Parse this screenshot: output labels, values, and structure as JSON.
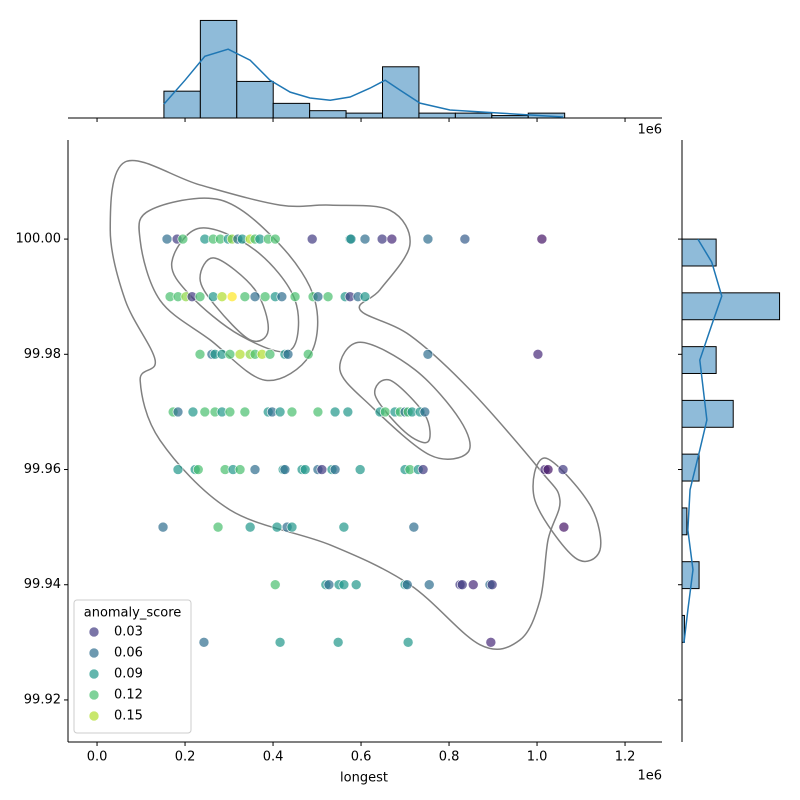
{
  "chart_data": {
    "type": "scatter",
    "x_label": "longest",
    "offset_label": "1e6",
    "xlim": [
      -66000,
      1284000
    ],
    "xticks": [
      {
        "value": 0,
        "label": "0.0"
      },
      {
        "value": 200000,
        "label": "0.2"
      },
      {
        "value": 400000,
        "label": "0.4"
      },
      {
        "value": 600000,
        "label": "0.6"
      },
      {
        "value": 800000,
        "label": "0.8"
      },
      {
        "value": 1000000,
        "label": "1.0"
      },
      {
        "value": 1200000,
        "label": "1.2"
      }
    ],
    "ylim": [
      99.9127,
      100.0172
    ],
    "yticks": [
      99.92,
      99.94,
      99.96,
      99.98,
      {
        "value": 100,
        "label": "100.00"
      }
    ],
    "x": [
      159000,
      182000,
      195000,
      245000,
      264000,
      280000,
      298000,
      307000,
      320000,
      330000,
      348000,
      359000,
      370000,
      389000,
      405000,
      489000,
      575000,
      577000,
      609000,
      648000,
      670000,
      752000,
      836000,
      1011000,
      166000,
      184000,
      202000,
      216000,
      234000,
      264000,
      284000,
      307000,
      336000,
      359000,
      382000,
      405000,
      420000,
      450000,
      491000,
      502000,
      525000,
      564000,
      575000,
      593000,
      609000,
      234000,
      261000,
      268000,
      284000,
      302000,
      325000,
      348000,
      359000,
      375000,
      393000,
      427000,
      434000,
      480000,
      752000,
      1002000,
      173000,
      184000,
      218000,
      245000,
      268000,
      284000,
      302000,
      336000,
      389000,
      398000,
      416000,
      443000,
      502000,
      541000,
      570000,
      643000,
      655000,
      677000,
      689000,
      700000,
      707000,
      716000,
      734000,
      745000,
      184000,
      223000,
      230000,
      291000,
      309000,
      325000,
      359000,
      423000,
      427000,
      466000,
      473000,
      502000,
      511000,
      534000,
      541000,
      598000,
      700000,
      711000,
      730000,
      741000,
      1018000,
      1025000,
      1059000,
      150000,
      275000,
      348000,
      409000,
      432000,
      443000,
      561000,
      720000,
      1061000,
      405000,
      520000,
      527000,
      550000,
      561000,
      589000,
      700000,
      705000,
      755000,
      825000,
      830000,
      855000,
      893000,
      898000,
      243000,
      416000,
      548000,
      707000,
      895000
    ],
    "y": [
      100,
      100,
      100,
      100,
      100,
      100,
      100,
      100,
      100,
      100,
      100,
      100,
      100,
      100,
      100,
      100,
      100,
      100,
      100,
      100,
      100,
      100,
      100,
      100,
      99.99,
      99.99,
      99.99,
      99.99,
      99.99,
      99.99,
      99.99,
      99.99,
      99.99,
      99.99,
      99.99,
      99.99,
      99.99,
      99.99,
      99.99,
      99.99,
      99.99,
      99.99,
      99.99,
      99.99,
      99.99,
      99.98,
      99.98,
      99.98,
      99.98,
      99.98,
      99.98,
      99.98,
      99.98,
      99.98,
      99.98,
      99.98,
      99.98,
      99.98,
      99.98,
      99.98,
      99.97,
      99.97,
      99.97,
      99.97,
      99.97,
      99.97,
      99.97,
      99.97,
      99.97,
      99.97,
      99.97,
      99.97,
      99.97,
      99.97,
      99.97,
      99.97,
      99.97,
      99.97,
      99.97,
      99.97,
      99.97,
      99.97,
      99.97,
      99.97,
      99.96,
      99.96,
      99.96,
      99.96,
      99.96,
      99.96,
      99.96,
      99.96,
      99.96,
      99.96,
      99.96,
      99.96,
      99.96,
      99.96,
      99.96,
      99.96,
      99.96,
      99.96,
      99.96,
      99.96,
      99.96,
      99.96,
      99.96,
      99.95,
      99.95,
      99.95,
      99.95,
      99.95,
      99.95,
      99.95,
      99.95,
      99.95,
      99.94,
      99.94,
      99.94,
      99.94,
      99.94,
      99.94,
      99.94,
      99.94,
      99.94,
      99.94,
      99.94,
      99.94,
      99.94,
      99.94,
      99.93,
      99.93,
      99.93,
      99.93,
      99.93
    ],
    "hue": [
      0.06,
      0.03,
      0.12,
      0.09,
      0.12,
      0.12,
      0.09,
      0.14,
      0.06,
      0.09,
      0.15,
      0.12,
      0.09,
      0.12,
      0.12,
      0.03,
      0.09,
      0.08,
      0.06,
      0.03,
      0.02,
      0.06,
      0.05,
      0.01,
      0.12,
      0.12,
      0.14,
      0.03,
      0.12,
      0.09,
      0.15,
      0.17,
      0.12,
      0.06,
      0.12,
      0.09,
      0.06,
      0.12,
      0.12,
      0.06,
      0.12,
      0.09,
      0.03,
      0.06,
      0.09,
      0.12,
      0.06,
      0.09,
      0.09,
      0.12,
      0.15,
      0.14,
      0.12,
      0.15,
      0.12,
      0.09,
      0.06,
      0.12,
      0.06,
      0.02,
      0.12,
      0.06,
      0.09,
      0.12,
      0.12,
      0.09,
      0.12,
      0.12,
      0.09,
      0.06,
      0.09,
      0.12,
      0.12,
      0.09,
      0.09,
      0.09,
      0.12,
      0.09,
      0.12,
      0.06,
      0.12,
      0.09,
      0.09,
      0.06,
      0.09,
      0.09,
      0.12,
      0.12,
      0.09,
      0.12,
      0.06,
      0.09,
      0.06,
      0.09,
      0.09,
      0.06,
      0.03,
      0.09,
      0.06,
      0.09,
      0.09,
      0.12,
      0.09,
      0.03,
      0.02,
      0.01,
      0.03,
      0.06,
      0.12,
      0.09,
      0.09,
      0.06,
      0.09,
      0.09,
      0.06,
      0.01,
      0.12,
      0.09,
      0.06,
      0.09,
      0.09,
      0.09,
      0.09,
      0.06,
      0.06,
      0.03,
      0.03,
      0.02,
      0.06,
      0.03,
      0.06,
      0.09,
      0.09,
      0.09,
      0.02
    ],
    "hue_name": "anomaly_score",
    "hue_range": [
      0,
      0.17
    ],
    "colormap": [
      "#440154",
      "#482878",
      "#3e4989",
      "#31688e",
      "#26828e",
      "#1f9e89",
      "#35b779",
      "#6ece58",
      "#b5de2b",
      "#fde725"
    ],
    "legend": {
      "loc": "lower left",
      "entries": [
        0.03,
        0.06,
        0.09,
        0.12,
        0.15
      ]
    },
    "contour_color": "#808080",
    "contours": [
      {
        "x": [
          64000,
          234000,
          416000,
          530000,
          666000,
          711000,
          643000,
          598000,
          711000,
          848000,
          1007000,
          1052000,
          1025000,
          1007000,
          961000,
          870000,
          711000,
          530000,
          302000,
          143000,
          98000,
          132000,
          64000,
          30000
        ],
        "y": [
          100.0134,
          100.0094,
          100.0059,
          100.0059,
          100.005,
          99.999,
          99.9912,
          99.9877,
          99.9833,
          99.9738,
          99.9599,
          99.9547,
          99.9478,
          99.9374,
          99.9304,
          99.9296,
          99.94,
          99.9469,
          99.953,
          99.9651,
          99.9755,
          99.979,
          99.9894,
          100.0016
        ]
      },
      {
        "x": [
          120000,
          280000,
          416000,
          495000,
          484000,
          382000,
          257000,
          143000,
          98000
        ],
        "y": [
          100.005,
          100.0068,
          99.999,
          99.9894,
          99.9799,
          99.9755,
          99.9825,
          99.9894,
          99.9998
        ]
      },
      {
        "x": [
          234000,
          359000,
          450000,
          439000,
          325000,
          211000,
          170000
        ],
        "y": [
          100.0019,
          99.9981,
          99.9894,
          99.9807,
          99.9833,
          99.9903,
          99.996
        ]
      },
      {
        "x": [
          268000,
          359000,
          389000,
          348000,
          268000,
          234000
        ],
        "y": [
          99.9967,
          99.9912,
          99.9842,
          99.9825,
          99.9885,
          99.9932
        ]
      },
      {
        "x": [
          598000,
          723000,
          825000,
          843000,
          757000,
          620000,
          552000
        ],
        "y": [
          99.9821,
          99.9773,
          99.9686,
          99.963,
          99.9625,
          99.9712,
          99.9773
        ]
      },
      {
        "x": [
          666000,
          745000,
          752000,
          700000,
          632000
        ],
        "y": [
          99.9755,
          99.9695,
          99.9648,
          99.9665,
          99.9729
        ]
      },
      {
        "x": [
          1018000,
          1120000,
          1143000,
          1086000,
          995000
        ],
        "y": [
          99.962,
          99.9539,
          99.946,
          99.9447,
          99.9547
        ]
      }
    ],
    "hist_color": "#8fbbd9",
    "kde_color": "#1f77b4",
    "marginal_x": {
      "type": "histogram",
      "bins": [
        152000,
        234800,
        317600,
        400400,
        483200,
        566000,
        648800,
        731600,
        814400,
        897200,
        980000,
        1062800
      ],
      "counts": [
        11,
        40,
        15,
        6,
        3,
        2,
        21,
        2,
        2,
        1,
        2
      ],
      "ylim": [
        0,
        41
      ],
      "kde": {
        "x": [
          152000,
          200000,
          245000,
          298000,
          348000,
          393000,
          439000,
          484000,
          530000,
          575000,
          620000,
          655000,
          689000,
          734000,
          802000,
          916000,
          1059000
        ],
        "values": [
          5.7,
          15.5,
          25.3,
          28.2,
          23.7,
          15.5,
          10.6,
          8.2,
          7.3,
          8.6,
          12.2,
          15.5,
          11.4,
          6.1,
          3.3,
          2.0,
          0.4
        ]
      }
    },
    "marginal_y": {
      "type": "histogram",
      "bins": [
        99.93,
        99.93467,
        99.93933,
        99.944,
        99.94867,
        99.95333,
        99.958,
        99.96267,
        99.96733,
        99.972,
        99.97667,
        99.98133,
        99.986,
        99.99067,
        99.99533,
        100.0
      ],
      "counts": [
        1,
        0,
        7,
        0,
        2,
        0,
        7,
        0,
        21,
        0,
        14,
        0,
        40,
        0,
        14
      ],
      "xlim": [
        0,
        41
      ],
      "kde": {
        "y": [
          100.0,
          99.996,
          99.9901,
          99.9851,
          99.979,
          99.9729,
          99.9686,
          99.9634,
          99.9565,
          99.9495,
          99.9426,
          99.9356,
          99.9299
        ],
        "values": [
          6.5,
          12.2,
          16.3,
          12.2,
          7.3,
          9.0,
          10.2,
          7.3,
          3.3,
          2.4,
          4.5,
          2.4,
          0.8
        ]
      }
    }
  }
}
